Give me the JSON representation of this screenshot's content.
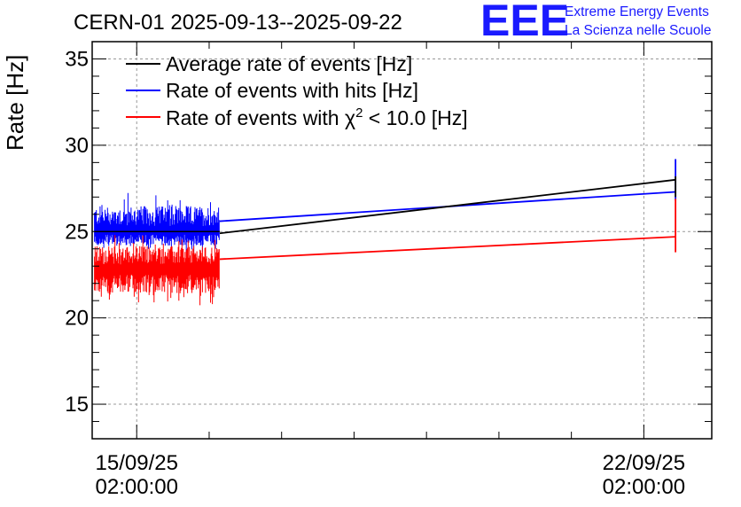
{
  "header": {
    "title": "CERN-01 2025-09-13--2025-09-22",
    "logo_text": "EEE",
    "logo_line1": "Extreme Energy Events",
    "logo_line2": "La Scienza nelle Scuole"
  },
  "colors": {
    "average": "#000000",
    "hits": "#0000ff",
    "chi2": "#ff0000",
    "logo": "#1a1aff",
    "grid": "#999999"
  },
  "chart_data": {
    "type": "line",
    "ylabel": "Rate [Hz]",
    "xlabel": "",
    "ylim": [
      13,
      36
    ],
    "yticks": [
      15,
      20,
      25,
      30,
      35
    ],
    "xlim": [
      "2025-09-14 11:15",
      "2025-09-23 00:30"
    ],
    "xticks": [
      {
        "x": "2025-09-15 02:00:00",
        "label1": "15/09/25",
        "label2": "02:00:00"
      },
      {
        "x": "2025-09-22 02:00:00",
        "label1": "22/09/25",
        "label2": "02:00:00"
      }
    ],
    "grid": true,
    "legend_position": "top-left",
    "series": [
      {
        "name": "Average rate of events [Hz]",
        "legend_label": "Average rate of events [Hz]",
        "segments": [
          {
            "x_start": "2025-09-14 12:00",
            "x_end": "2025-09-16 05:30",
            "mean": 25.0,
            "spread": 0.0
          },
          {
            "x_start": "2025-09-16 05:30",
            "x_end": "2025-09-22 12:30",
            "y_start": 24.9,
            "y_end": 28.0
          },
          {
            "x_start": "2025-09-22 12:30",
            "x_end": "2025-09-22 12:30",
            "y_start": 27.0,
            "y_end": 28.2
          }
        ]
      },
      {
        "name": "Rate of events with hits [Hz]",
        "legend_label": "Rate of events with hits [Hz]",
        "segments": [
          {
            "x_start": "2025-09-14 12:00",
            "x_end": "2025-09-16 05:30",
            "mean": 25.0,
            "min": 23.6,
            "max": 27.5
          },
          {
            "x_start": "2025-09-16 05:30",
            "x_end": "2025-09-22 12:30",
            "y_start": 25.6,
            "y_end": 27.3
          },
          {
            "x_start": "2025-09-22 12:30",
            "x_end": "2025-09-22 12:30",
            "y_start": 26.8,
            "y_end": 29.2
          }
        ]
      },
      {
        "name": "Rate of events with chi2 < 10.0 [Hz]",
        "legend_label_pre": "Rate of events with ",
        "legend_label_chi": "χ",
        "legend_label_sup": "2",
        "legend_label_post": " < 10.0 [Hz]",
        "segments": [
          {
            "x_start": "2025-09-14 12:00",
            "x_end": "2025-09-16 05:30",
            "mean": 22.8,
            "min": 20.5,
            "max": 25.1
          },
          {
            "x_start": "2025-09-16 05:30",
            "x_end": "2025-09-22 12:30",
            "y_start": 23.4,
            "y_end": 24.7
          },
          {
            "x_start": "2025-09-22 12:30",
            "x_end": "2025-09-22 12:30",
            "y_start": 23.8,
            "y_end": 26.9
          }
        ]
      }
    ]
  }
}
